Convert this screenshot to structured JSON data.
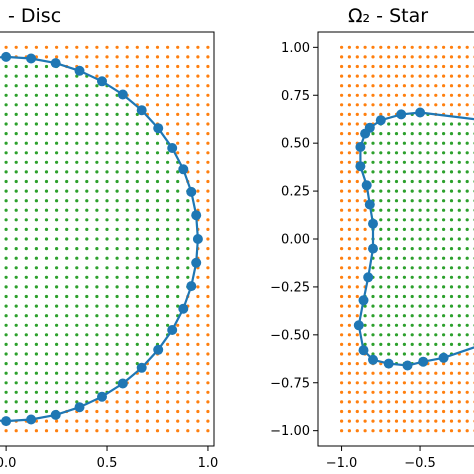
{
  "chart_data": [
    {
      "type": "scatter",
      "title": "- Disc",
      "xlim": [
        -0.06,
        1.03
      ],
      "ylim": [
        -1.08,
        1.08
      ],
      "x_ticks": [
        {
          "value": 0.0,
          "label": "0.0"
        },
        {
          "value": 0.5,
          "label": "0.5"
        },
        {
          "value": 1.0,
          "label": "1.0"
        }
      ],
      "y_ticks": [],
      "grid": false,
      "series": [
        {
          "role": "grid-outside",
          "color": "#ff7f0e",
          "marker": "small-dot"
        },
        {
          "role": "grid-inside",
          "color": "#2ca02c",
          "marker": "small-dot"
        },
        {
          "role": "boundary",
          "color": "#1f77b4",
          "marker": "large-dot",
          "line": true,
          "shape": "disc",
          "center": [
            0,
            0
          ],
          "radius": 0.95,
          "points": 48
        }
      ],
      "grid_points": {
        "range": [
          -1.0,
          1.0
        ],
        "step": 0.05
      }
    },
    {
      "type": "scatter",
      "title": "Ω₂ - Star",
      "xlim": [
        -1.15,
        -0.08
      ],
      "ylim": [
        -1.08,
        1.08
      ],
      "x_ticks": [
        {
          "value": -1.0,
          "label": "−1.0"
        },
        {
          "value": -0.5,
          "label": "−0.5"
        }
      ],
      "y_ticks": [
        {
          "value": 1.0,
          "label": "1.00"
        },
        {
          "value": 0.75,
          "label": "0.75"
        },
        {
          "value": 0.5,
          "label": "0.50"
        },
        {
          "value": 0.25,
          "label": "0.25"
        },
        {
          "value": 0.0,
          "label": "0.00"
        },
        {
          "value": -0.25,
          "label": "−0.25"
        },
        {
          "value": -0.5,
          "label": "−0.50"
        },
        {
          "value": -0.75,
          "label": "−0.75"
        },
        {
          "value": -1.0,
          "label": "−1.00"
        }
      ],
      "grid": false,
      "series": [
        {
          "role": "grid-outside",
          "color": "#ff7f0e",
          "marker": "small-dot"
        },
        {
          "role": "grid-inside",
          "color": "#2ca02c",
          "marker": "small-dot"
        },
        {
          "role": "boundary",
          "color": "#1f77b4",
          "marker": "large-dot",
          "line": true,
          "shape": "star",
          "points": [
            [
              -0.1,
              0.62
            ],
            [
              -0.5,
              0.66
            ],
            [
              -0.62,
              0.65
            ],
            [
              -0.75,
              0.62
            ],
            [
              -0.82,
              0.58
            ],
            [
              -0.85,
              0.55
            ],
            [
              -0.88,
              0.48
            ],
            [
              -0.88,
              0.38
            ],
            [
              -0.84,
              0.28
            ],
            [
              -0.82,
              0.18
            ],
            [
              -0.8,
              0.08
            ],
            [
              -0.8,
              -0.05
            ],
            [
              -0.83,
              -0.2
            ],
            [
              -0.86,
              -0.32
            ],
            [
              -0.89,
              -0.45
            ],
            [
              -0.86,
              -0.58
            ],
            [
              -0.8,
              -0.63
            ],
            [
              -0.7,
              -0.65
            ],
            [
              -0.58,
              -0.66
            ],
            [
              -0.48,
              -0.64
            ],
            [
              -0.35,
              -0.62
            ],
            [
              -0.1,
              -0.55
            ]
          ]
        }
      ],
      "grid_points": {
        "range": [
          -1.0,
          1.0
        ],
        "step": 0.05
      }
    }
  ]
}
